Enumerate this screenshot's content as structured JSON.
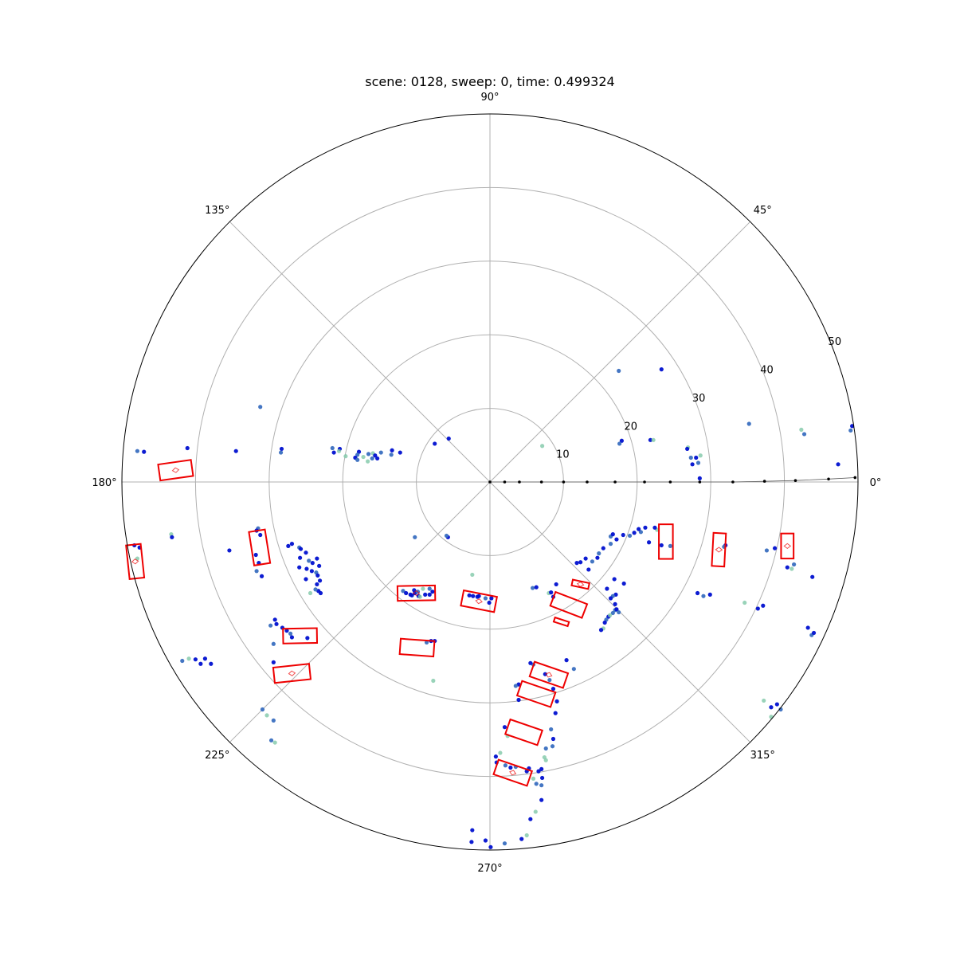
{
  "chart_data": {
    "type": "scatter",
    "projection": "polar",
    "title": "scene: 0128, sweep: 0, time: 0.499324",
    "angle_ticks": [
      {
        "deg": 0,
        "label": "0°"
      },
      {
        "deg": 45,
        "label": "45°"
      },
      {
        "deg": 90,
        "label": "90°"
      },
      {
        "deg": 135,
        "label": "135°"
      },
      {
        "deg": 180,
        "label": "180°"
      },
      {
        "deg": 225,
        "label": "225°"
      },
      {
        "deg": 270,
        "label": "270°"
      },
      {
        "deg": 315,
        "label": "315°"
      }
    ],
    "radial_ticks": [
      {
        "r": 10,
        "label": "10"
      },
      {
        "r": 20,
        "label": "20"
      },
      {
        "r": 30,
        "label": "30"
      },
      {
        "r": 40,
        "label": "40"
      },
      {
        "r": 50,
        "label": "50"
      }
    ],
    "rlim": [
      0,
      50
    ],
    "grid": true,
    "colors": {
      "box": "#ee0000",
      "point_dark": "#0010d0",
      "point_mid": "#3a6fc0",
      "point_light": "#7fc8a8",
      "trajectory": "#000000",
      "grid": "#b0b0b0"
    },
    "trajectory": [
      [
        0,
        0
      ],
      [
        2,
        0
      ],
      [
        4,
        0
      ],
      [
        7,
        0
      ],
      [
        10,
        0
      ],
      [
        13.2,
        0
      ],
      [
        17,
        0
      ],
      [
        21,
        0
      ],
      [
        24.5,
        0
      ],
      [
        28.5,
        0
      ],
      [
        33,
        0
      ],
      [
        37.3,
        0.1
      ],
      [
        41.5,
        0.2
      ],
      [
        46,
        0.4
      ],
      [
        49.6,
        0.6
      ]
    ],
    "points": [
      [
        -10.2,
        -7.5,
        "m"
      ],
      [
        -5.6,
        5.9,
        "d"
      ],
      [
        -7.5,
        5.2,
        "d"
      ],
      [
        7.1,
        4.9,
        "l"
      ],
      [
        17.5,
        15.1,
        "m"
      ],
      [
        23.3,
        15.3,
        "d"
      ],
      [
        35.2,
        7.9,
        "m"
      ],
      [
        42.3,
        7.1,
        "l"
      ],
      [
        42.7,
        6.5,
        "m"
      ],
      [
        49.2,
        7.6,
        "d"
      ],
      [
        49.0,
        7.0,
        "m"
      ],
      [
        47.3,
        2.4,
        "d"
      ],
      [
        17.9,
        5.6,
        "d"
      ],
      [
        17.6,
        5.2,
        "m"
      ],
      [
        21.8,
        5.7,
        "d"
      ],
      [
        22.2,
        5.7,
        "l"
      ],
      [
        26.9,
        4.7,
        "l"
      ],
      [
        26.8,
        4.5,
        "d"
      ],
      [
        27.3,
        3.3,
        "m"
      ],
      [
        28.0,
        3.3,
        "d"
      ],
      [
        28.6,
        3.6,
        "l"
      ],
      [
        28.3,
        2.6,
        "m"
      ],
      [
        28.5,
        0.5,
        "d"
      ],
      [
        27.5,
        2.4,
        "d"
      ],
      [
        -31.2,
        10.2,
        "m"
      ],
      [
        -12.2,
        4.0,
        "d"
      ],
      [
        -13.3,
        4.3,
        "d"
      ],
      [
        -13.4,
        3.7,
        "m"
      ],
      [
        -17.8,
        4.1,
        "d"
      ],
      [
        -18.0,
        3.7,
        "m"
      ],
      [
        -20.4,
        4.5,
        "d"
      ],
      [
        -20.5,
        4.2,
        "l"
      ],
      [
        -21.4,
        4.6,
        "m"
      ],
      [
        -21.2,
        4.0,
        "d"
      ],
      [
        -16.5,
        3.8,
        "m"
      ],
      [
        -15.9,
        3.9,
        "l"
      ],
      [
        -14.8,
        4.0,
        "m"
      ],
      [
        -15.6,
        3.6,
        "d"
      ],
      [
        -16.0,
        3.2,
        "m"
      ],
      [
        -16.6,
        2.8,
        "l"
      ],
      [
        -17.2,
        3.4,
        "l"
      ],
      [
        -15.3,
        3.2,
        "d"
      ],
      [
        -19.6,
        3.5,
        "l"
      ],
      [
        -18.3,
        3.3,
        "d"
      ],
      [
        -18.0,
        3.0,
        "m"
      ],
      [
        -28.3,
        4.5,
        "d"
      ],
      [
        -28.4,
        4.0,
        "m"
      ],
      [
        -34.5,
        4.2,
        "d"
      ],
      [
        -41.1,
        4.6,
        "d"
      ],
      [
        -47.9,
        4.2,
        "m"
      ],
      [
        -47.0,
        4.1,
        "d"
      ],
      [
        -48.3,
        -8.6,
        "d"
      ],
      [
        -47.6,
        -8.9,
        "d"
      ],
      [
        -47.9,
        -10.4,
        "l"
      ],
      [
        -43.3,
        -7.1,
        "l"
      ],
      [
        -43.2,
        -7.5,
        "d"
      ],
      [
        -35.4,
        -9.3,
        "d"
      ],
      [
        -31.8,
        -9.9,
        "d"
      ],
      [
        -31.4,
        -11.0,
        "d"
      ],
      [
        -31.7,
        -12.1,
        "m"
      ],
      [
        -31.0,
        -12.8,
        "d"
      ],
      [
        -31.5,
        -6.3,
        "m"
      ],
      [
        -31.7,
        -6.6,
        "d"
      ],
      [
        -31.2,
        -7.2,
        "d"
      ],
      [
        -26.9,
        -8.4,
        "d"
      ],
      [
        -27.4,
        -8.7,
        "d"
      ],
      [
        -25.9,
        -8.9,
        "m"
      ],
      [
        -25.7,
        -9.1,
        "d"
      ],
      [
        -25.0,
        -9.6,
        "d"
      ],
      [
        -25.8,
        -10.3,
        "d"
      ],
      [
        -25.9,
        -11.6,
        "d"
      ],
      [
        -24.9,
        -11.8,
        "d"
      ],
      [
        -25.0,
        -13.2,
        "d"
      ],
      [
        -24.2,
        -12.1,
        "d"
      ],
      [
        -23.6,
        -12.3,
        "m"
      ],
      [
        -24.1,
        -11.0,
        "d"
      ],
      [
        -24.6,
        -10.7,
        "m"
      ],
      [
        -23.5,
        -10.4,
        "d"
      ],
      [
        -23.2,
        -11.4,
        "d"
      ],
      [
        -23.4,
        -12.7,
        "d"
      ],
      [
        -23.3,
        -14.8,
        "d"
      ],
      [
        -23.0,
        -15.1,
        "d"
      ],
      [
        -23.7,
        -14.6,
        "m"
      ],
      [
        -23.1,
        -13.4,
        "d"
      ],
      [
        -24.4,
        -15.1,
        "l"
      ],
      [
        -23.5,
        -13.9,
        "d"
      ],
      [
        -41.8,
        -24.3,
        "m"
      ],
      [
        -40.9,
        -24.0,
        "l"
      ],
      [
        -40.0,
        -24.1,
        "d"
      ],
      [
        -39.3,
        -24.7,
        "d"
      ],
      [
        -38.7,
        -24.0,
        "d"
      ],
      [
        -37.9,
        -24.7,
        "d"
      ],
      [
        -29.2,
        -18.7,
        "d"
      ],
      [
        -29.0,
        -19.3,
        "d"
      ],
      [
        -29.8,
        -19.5,
        "m"
      ],
      [
        -28.2,
        -19.8,
        "d"
      ],
      [
        -27.6,
        -20.2,
        "d"
      ],
      [
        -27.1,
        -20.6,
        "m"
      ],
      [
        -24.8,
        -21.2,
        "d"
      ],
      [
        -26.9,
        -21.1,
        "d"
      ],
      [
        -29.4,
        -22.0,
        "m"
      ],
      [
        -29.4,
        -24.5,
        "d"
      ],
      [
        -30.9,
        -30.9,
        "m"
      ],
      [
        -30.3,
        -31.7,
        "l"
      ],
      [
        -29.4,
        -32.4,
        "m"
      ],
      [
        -29.2,
        -35.4,
        "l"
      ],
      [
        -29.7,
        -35.1,
        "m"
      ],
      [
        -5.7,
        -7.5,
        "d"
      ],
      [
        -5.9,
        -7.3,
        "m"
      ],
      [
        -11.8,
        -14.8,
        "m"
      ],
      [
        -11.4,
        -15.1,
        "d"
      ],
      [
        -10.8,
        -15.3,
        "d"
      ],
      [
        -10.2,
        -15.1,
        "d"
      ],
      [
        -9.8,
        -14.9,
        "m"
      ],
      [
        -9.7,
        -15.5,
        "d"
      ],
      [
        -8.8,
        -15.3,
        "d"
      ],
      [
        -8.2,
        -15.3,
        "d"
      ],
      [
        -7.8,
        -14.9,
        "d"
      ],
      [
        -8.2,
        -14.5,
        "m"
      ],
      [
        -9.1,
        -14.5,
        "l"
      ],
      [
        -10.3,
        -14.7,
        "d"
      ],
      [
        -10.6,
        -15.4,
        "d"
      ],
      [
        -9.5,
        -15.6,
        "l"
      ],
      [
        -2.4,
        -12.6,
        "l"
      ],
      [
        -2.8,
        -15.4,
        "d"
      ],
      [
        -2.3,
        -15.5,
        "d"
      ],
      [
        -1.7,
        -15.6,
        "d"
      ],
      [
        -0.6,
        -15.8,
        "m"
      ],
      [
        0.2,
        -15.8,
        "d"
      ],
      [
        -0.1,
        -16.4,
        "d"
      ],
      [
        -1.5,
        -15.5,
        "d"
      ],
      [
        -8.6,
        -21.8,
        "m"
      ],
      [
        -8.0,
        -21.6,
        "d"
      ],
      [
        -7.5,
        -21.6,
        "d"
      ],
      [
        -7.7,
        -27.0,
        "l"
      ],
      [
        5.8,
        -14.4,
        "m"
      ],
      [
        6.3,
        -14.3,
        "d"
      ],
      [
        9.0,
        -13.9,
        "d"
      ],
      [
        8.0,
        -15.1,
        "l"
      ],
      [
        8.6,
        -15.6,
        "d"
      ],
      [
        8.3,
        -15.0,
        "d"
      ],
      [
        11.8,
        -11.0,
        "d"
      ],
      [
        12.3,
        -10.9,
        "d"
      ],
      [
        13.0,
        -10.4,
        "d"
      ],
      [
        13.9,
        -10.8,
        "m"
      ],
      [
        14.6,
        -10.3,
        "d"
      ],
      [
        14.8,
        -9.7,
        "m"
      ],
      [
        15.4,
        -9.0,
        "d"
      ],
      [
        16.4,
        -8.4,
        "m"
      ],
      [
        16.4,
        -7.4,
        "m"
      ],
      [
        16.7,
        -7.1,
        "d"
      ],
      [
        17.2,
        -7.8,
        "d"
      ],
      [
        18.1,
        -7.2,
        "d"
      ],
      [
        19.0,
        -7.3,
        "m"
      ],
      [
        19.6,
        -6.9,
        "d"
      ],
      [
        20.5,
        -6.8,
        "m"
      ],
      [
        20.2,
        -6.4,
        "d"
      ],
      [
        21.1,
        -6.2,
        "d"
      ],
      [
        22.7,
        -6.5,
        "l"
      ],
      [
        22.4,
        -6.2,
        "d"
      ],
      [
        16.9,
        -13.2,
        "d"
      ],
      [
        15.9,
        -14.5,
        "d"
      ],
      [
        17.1,
        -15.3,
        "d"
      ],
      [
        16.7,
        -15.5,
        "m"
      ],
      [
        16.4,
        -15.8,
        "d"
      ],
      [
        17.0,
        -16.6,
        "d"
      ],
      [
        17.0,
        -17.4,
        "m"
      ],
      [
        16.7,
        -17.8,
        "m"
      ],
      [
        16.1,
        -18.3,
        "d"
      ],
      [
        15.8,
        -18.7,
        "m"
      ],
      [
        17.2,
        -17.3,
        "d"
      ],
      [
        17.5,
        -17.7,
        "m"
      ],
      [
        16.3,
        -18.1,
        "l"
      ],
      [
        15.6,
        -19.1,
        "d"
      ],
      [
        15.4,
        -19.9,
        "l"
      ],
      [
        15.1,
        -20.1,
        "d"
      ],
      [
        5.9,
        -24.8,
        "m"
      ],
      [
        5.5,
        -24.6,
        "d"
      ],
      [
        7.5,
        -26.1,
        "d"
      ],
      [
        8.1,
        -26.9,
        "m"
      ],
      [
        10.4,
        -24.2,
        "d"
      ],
      [
        11.4,
        -25.4,
        "m"
      ],
      [
        8.6,
        -28.1,
        "d"
      ],
      [
        3.9,
        -27.5,
        "d"
      ],
      [
        3.5,
        -27.7,
        "m"
      ],
      [
        3.9,
        -29.6,
        "d"
      ],
      [
        9.1,
        -29.8,
        "d"
      ],
      [
        8.9,
        -31.4,
        "d"
      ],
      [
        8.3,
        -33.6,
        "m"
      ],
      [
        8.6,
        -34.9,
        "d"
      ],
      [
        8.5,
        -35.9,
        "m"
      ],
      [
        7.6,
        -36.2,
        "m"
      ],
      [
        7.4,
        -37.4,
        "l"
      ],
      [
        7.6,
        -37.8,
        "l"
      ],
      [
        7.0,
        -39.0,
        "d"
      ],
      [
        7.1,
        -40.2,
        "d"
      ],
      [
        7.0,
        -41.2,
        "m"
      ],
      [
        2.0,
        -33.3,
        "d"
      ],
      [
        2.4,
        -34.5,
        "l"
      ],
      [
        1.4,
        -36.8,
        "l"
      ],
      [
        0.9,
        -38.1,
        "d"
      ],
      [
        0.8,
        -37.3,
        "d"
      ],
      [
        2.1,
        -38.5,
        "m"
      ],
      [
        2.8,
        -38.8,
        "d"
      ],
      [
        3.5,
        -38.7,
        "m"
      ],
      [
        5.0,
        -39.3,
        "d"
      ],
      [
        5.3,
        -38.9,
        "d"
      ],
      [
        6.6,
        -39.3,
        "d"
      ],
      [
        5.9,
        -40.3,
        "l"
      ],
      [
        6.3,
        -41.0,
        "m"
      ],
      [
        7.0,
        -43.2,
        "d"
      ],
      [
        6.2,
        -44.8,
        "l"
      ],
      [
        5.5,
        -45.8,
        "d"
      ],
      [
        5.0,
        -48.0,
        "l"
      ],
      [
        4.3,
        -48.5,
        "d"
      ],
      [
        2.0,
        -49.1,
        "m"
      ],
      [
        0.1,
        -49.6,
        "d"
      ],
      [
        -0.6,
        -48.7,
        "d"
      ],
      [
        -2.4,
        -47.3,
        "d"
      ],
      [
        -2.5,
        -48.9,
        "d"
      ],
      [
        13.4,
        -11.9,
        "d"
      ],
      [
        18.2,
        -13.8,
        "d"
      ],
      [
        29.0,
        -15.5,
        "m"
      ],
      [
        28.2,
        -15.1,
        "d"
      ],
      [
        29.9,
        -15.3,
        "d"
      ],
      [
        34.6,
        -16.4,
        "l"
      ],
      [
        37.1,
        -16.8,
        "d"
      ],
      [
        36.4,
        -17.2,
        "d"
      ],
      [
        37.6,
        -9.3,
        "m"
      ],
      [
        38.7,
        -9.0,
        "d"
      ],
      [
        40.4,
        -11.6,
        "d"
      ],
      [
        41.0,
        -11.8,
        "l"
      ],
      [
        41.3,
        -11.2,
        "m"
      ],
      [
        32.0,
        -8.6,
        "d"
      ],
      [
        31.8,
        -8.8,
        "m"
      ],
      [
        24.5,
        -8.7,
        "m"
      ],
      [
        23.3,
        -8.6,
        "d"
      ],
      [
        21.6,
        -8.2,
        "d"
      ],
      [
        43.8,
        -12.9,
        "d"
      ],
      [
        43.7,
        -20.8,
        "m"
      ],
      [
        44.0,
        -20.5,
        "d"
      ],
      [
        43.2,
        -19.8,
        "d"
      ],
      [
        37.2,
        -29.7,
        "l"
      ],
      [
        38.2,
        -30.6,
        "d"
      ],
      [
        38.2,
        -31.9,
        "l"
      ],
      [
        39.5,
        -30.9,
        "m"
      ],
      [
        39.0,
        -30.2,
        "d"
      ]
    ],
    "boxes": [
      {
        "c": [
          -42.7,
          1.6
        ],
        "w": 4.5,
        "h": 2.2,
        "ang": 8,
        "dot": true
      },
      {
        "c": [
          -48.2,
          -10.8
        ],
        "w": 2.0,
        "h": 4.6,
        "ang": 6,
        "dot": true
      },
      {
        "c": [
          -31.3,
          -8.9
        ],
        "w": 2.2,
        "h": 4.6,
        "ang": 9,
        "dot": false
      },
      {
        "c": [
          -10.0,
          -15.1
        ],
        "w": 5.1,
        "h": 2.0,
        "ang": 1,
        "dot": true
      },
      {
        "c": [
          -1.5,
          -16.2
        ],
        "w": 4.6,
        "h": 2.1,
        "ang": -11,
        "dot": true
      },
      {
        "c": [
          -9.9,
          -22.5
        ],
        "w": 4.6,
        "h": 2.1,
        "ang": -4,
        "dot": false
      },
      {
        "c": [
          -25.8,
          -20.9
        ],
        "w": 4.6,
        "h": 2.0,
        "ang": 1,
        "dot": false
      },
      {
        "c": [
          -26.9,
          -26.0
        ],
        "w": 4.9,
        "h": 2.1,
        "ang": 6,
        "dot": true
      },
      {
        "c": [
          12.3,
          -13.9
        ],
        "w": 2.3,
        "h": 0.8,
        "ang": -12,
        "dot": true
      },
      {
        "c": [
          10.7,
          -16.7
        ],
        "w": 4.6,
        "h": 2.0,
        "ang": -21,
        "dot": false
      },
      {
        "c": [
          9.7,
          -19.0
        ],
        "w": 2.0,
        "h": 0.6,
        "ang": -18,
        "dot": false
      },
      {
        "c": [
          8.0,
          -26.2
        ],
        "w": 4.8,
        "h": 2.1,
        "ang": -19,
        "dot": true
      },
      {
        "c": [
          6.3,
          -28.8
        ],
        "w": 4.8,
        "h": 2.1,
        "ang": -19,
        "dot": false
      },
      {
        "c": [
          4.6,
          -34.0
        ],
        "w": 4.6,
        "h": 2.1,
        "ang": -19,
        "dot": false
      },
      {
        "c": [
          3.1,
          -39.5
        ],
        "w": 4.8,
        "h": 2.1,
        "ang": -19,
        "dot": true
      },
      {
        "c": [
          23.9,
          -8.1
        ],
        "w": 1.9,
        "h": 4.7,
        "ang": 0,
        "dot": false
      },
      {
        "c": [
          31.1,
          -9.2
        ],
        "w": 1.7,
        "h": 4.5,
        "ang": -3,
        "dot": true
      },
      {
        "c": [
          40.4,
          -8.7
        ],
        "w": 1.7,
        "h": 3.4,
        "ang": 0,
        "dot": true
      }
    ]
  }
}
